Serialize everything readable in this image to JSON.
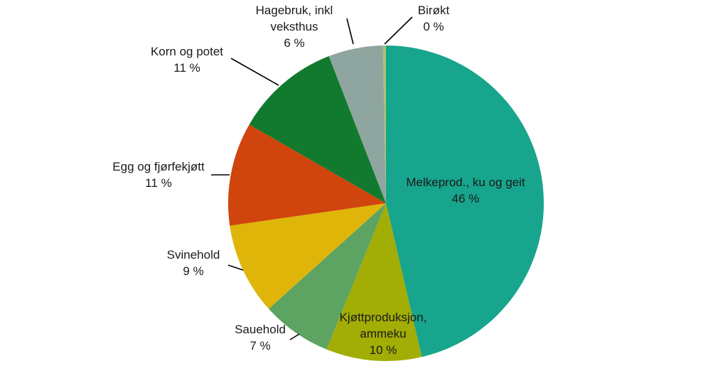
{
  "chart_data": {
    "type": "pie",
    "slices": [
      {
        "name_lines": [
          "Melkeprod., ku og geit"
        ],
        "pct_label": "46 %",
        "value": 46.4,
        "color": "#17a58d"
      },
      {
        "name_lines": [
          "Kjøttproduksjon,",
          "ammeku"
        ],
        "pct_label": "10 %",
        "value": 9.8,
        "color": "#a2ad05"
      },
      {
        "name_lines": [
          "Sauehold"
        ],
        "pct_label": "7 %",
        "value": 7.2,
        "color": "#5da362"
      },
      {
        "name_lines": [
          "Svinehold"
        ],
        "pct_label": "9 %",
        "value": 9.4,
        "color": "#e0b50a"
      },
      {
        "name_lines": [
          "Egg og fjørfekjøtt"
        ],
        "pct_label": "11 %",
        "value": 10.6,
        "color": "#d0440e"
      },
      {
        "name_lines": [
          "Korn og potet"
        ],
        "pct_label": "11 %",
        "value": 10.8,
        "color": "#127a2e"
      },
      {
        "name_lines": [
          "Hagebruk, inkl",
          "veksthus"
        ],
        "pct_label": "6 %",
        "value": 5.6,
        "color": "#8fa6a0"
      },
      {
        "name_lines": [
          "Birøkt"
        ],
        "pct_label": "0 %",
        "value": 0.3,
        "color": "#a7c56e"
      }
    ],
    "start_angle_deg": 0,
    "direction": "clockwise",
    "legend": "none"
  }
}
